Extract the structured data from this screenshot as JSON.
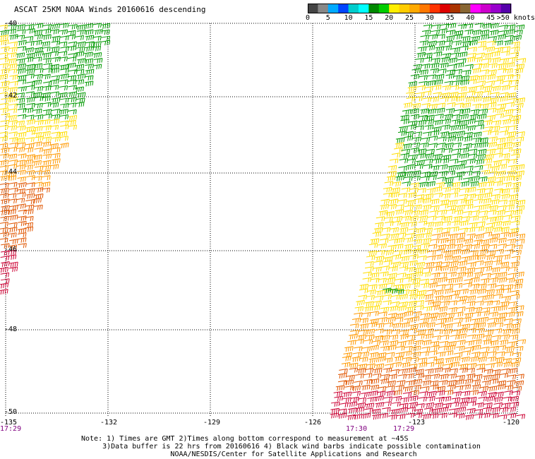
{
  "header": {
    "title": "ASCAT 25KM NOAA Winds 20160616 descending"
  },
  "legend": {
    "segments": [
      {
        "color": "#444444"
      },
      {
        "color": "#888888"
      },
      {
        "color": "#00aaff"
      },
      {
        "color": "#0044ff"
      },
      {
        "color": "#00cccc"
      },
      {
        "color": "#00ffff"
      },
      {
        "color": "#008800"
      },
      {
        "color": "#00cc00"
      },
      {
        "color": "#ffee00"
      },
      {
        "color": "#ffcc00"
      },
      {
        "color": "#ffaa00"
      },
      {
        "color": "#ff7700"
      },
      {
        "color": "#ff3300"
      },
      {
        "color": "#dd0000"
      },
      {
        "color": "#aa3300"
      },
      {
        "color": "#886633"
      },
      {
        "color": "#ff00ff"
      },
      {
        "color": "#cc00cc"
      },
      {
        "color": "#9900cc"
      },
      {
        "color": "#5500aa"
      }
    ],
    "labels": [
      "0",
      "5",
      "10",
      "15",
      "20",
      "25",
      "30",
      "35",
      "40",
      "45",
      ">50 knots"
    ]
  },
  "axes": {
    "lat_labels": [
      "-40",
      "-42",
      "-44",
      "-46",
      "-48",
      "-50"
    ],
    "lon_labels": [
      "-135",
      "-132",
      "-129",
      "-126",
      "-123",
      "-120"
    ]
  },
  "times": {
    "left": "17:29",
    "mid": "17:30",
    "right": "17:29"
  },
  "notes": {
    "line1": "Note: 1) Times are GMT 2)Times along bottom correspond to measurement at ~45S",
    "line2": "     3)Data buffer is 22 hrs from 20160616 4) Black wind barbs indicate possible contamination",
    "line3": "                     NOAA/NESDIS/Center for Satellite Applications and Research"
  },
  "map_data": {
    "lat_range": [
      -50,
      -40
    ],
    "lon_range": [
      -135,
      -120
    ],
    "speed_colors": {
      "green": "#009900",
      "yellow": "#ffdd00",
      "orange": "#ff9900",
      "dark_orange": "#e05500",
      "red": "#cc0033"
    },
    "wind_swaths": [
      {
        "name": "west-swath",
        "description_level": "green-yellow-orange-red"
      },
      {
        "name": "east-swath",
        "description_level": "green-yellow-orange-red"
      }
    ]
  }
}
